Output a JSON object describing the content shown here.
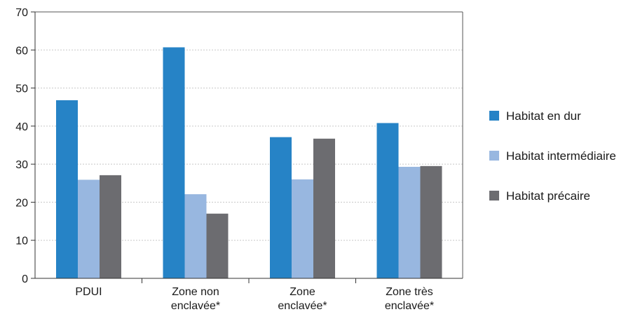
{
  "chart_data": {
    "type": "bar",
    "categories": [
      [
        "PDUI"
      ],
      [
        "Zone non",
        "enclavée*"
      ],
      [
        "Zone",
        "enclavée*"
      ],
      [
        "Zone très",
        "enclavée*"
      ]
    ],
    "series": [
      {
        "name": "Habitat en dur",
        "color": "#2683c6",
        "values": [
          46.8,
          60.7,
          37.1,
          40.8
        ]
      },
      {
        "name": "Habitat intermédiaire",
        "color": "#98b7e0",
        "values": [
          25.9,
          22.1,
          26.0,
          29.3
        ]
      },
      {
        "name": "Habitat précaire",
        "color": "#6c6c70",
        "values": [
          27.1,
          17.0,
          36.7,
          29.5
        ]
      }
    ],
    "ylim": [
      0,
      70
    ],
    "yticks": [
      0,
      10,
      20,
      30,
      40,
      50,
      60,
      70
    ],
    "grid": true,
    "legend_position": "right",
    "title": "",
    "xlabel": "",
    "ylabel": ""
  }
}
